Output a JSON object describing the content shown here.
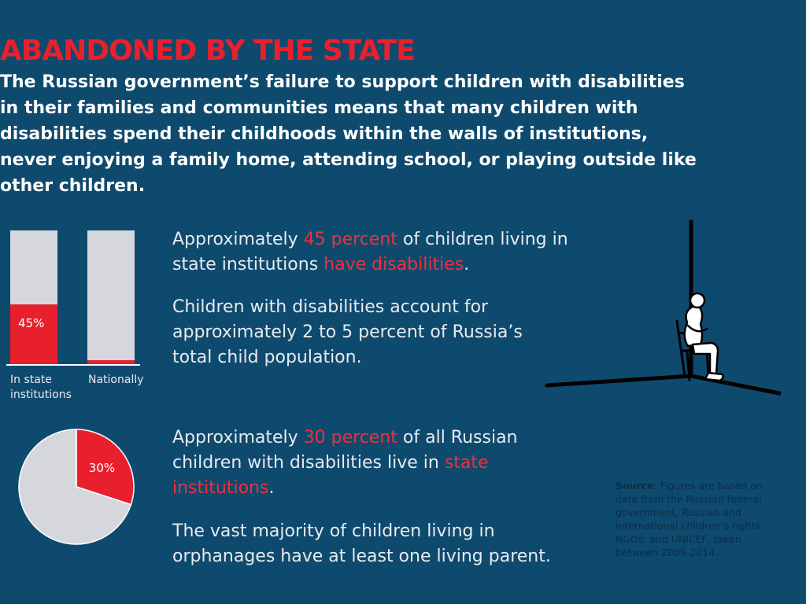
{
  "header": {
    "title": "ABANDONED BY THE STATE",
    "intro": "The Russian government’s failure to support children with disabilities in their families and communities means that many children with disabilities spend their childhoods within the walls of  institutions, never enjoying a family home, attending school, or playing outside like other children."
  },
  "stats": {
    "s1": {
      "pre": "Approximately ",
      "hl1": "45 percent",
      "mid": " of children living in state institutions ",
      "hl2": "have disabilities",
      "post": "."
    },
    "s2": "Children with disabilities account for approximately 2 to 5 percent of Russia’s total child population.",
    "s3": {
      "pre": "Approximately ",
      "hl1": "30 percent",
      "mid": " of all Russian children with disabilities live in ",
      "hl2": "state institutions",
      "post": "."
    },
    "s4": "The vast majority of children living in orphanages have at least one living parent."
  },
  "source": {
    "label": "Source",
    "text": ": Figures are based on data from the Russian federal government, Russian and international children’s rights NGOs, and UNICEF, taken between 2009-2014."
  },
  "colors": {
    "background": "#0e4a6e",
    "accent_red": "#e8202e",
    "bar_grey": "#d6d7dd",
    "source_text": "#0a2e47"
  },
  "chart_data": [
    {
      "type": "bar",
      "stacked": true,
      "categories": [
        "In state institutions",
        "Nationally"
      ],
      "series": [
        {
          "values": [
            45,
            3.5
          ],
          "color": "#e8202e"
        },
        {
          "values": [
            55,
            96.5
          ],
          "color": "#d6d7dd"
        }
      ],
      "data_labels": [
        "45%",
        ""
      ],
      "ylim": [
        0,
        100
      ],
      "title": "",
      "xlabel": "",
      "ylabel": ""
    },
    {
      "type": "pie",
      "slices": [
        {
          "value": 30,
          "color": "#e8202e",
          "label": "30%"
        },
        {
          "value": 70,
          "color": "#d6d7dd",
          "label": ""
        }
      ],
      "title": ""
    }
  ],
  "illustration": {
    "icon": "child-in-chair-corner-icon"
  }
}
